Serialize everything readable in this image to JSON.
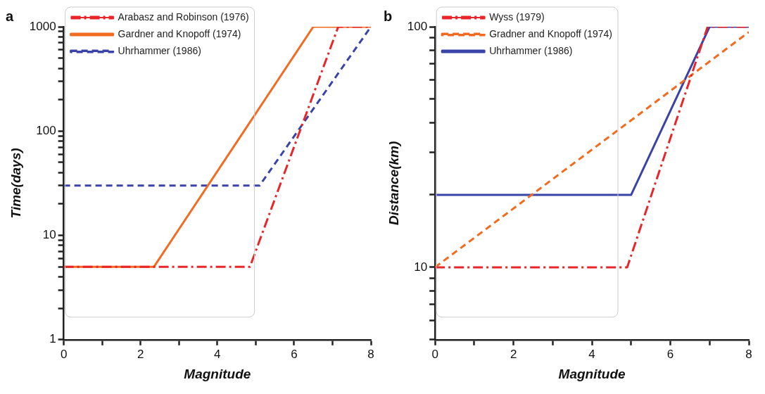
{
  "chart_data": [
    {
      "type": "line",
      "title": "a",
      "xlabel": "Magnitude",
      "ylabel": "Time(days)",
      "log": "y",
      "grid": false,
      "legend": "top left",
      "marker": "none",
      "xlim": [
        0,
        8
      ],
      "xticks": [
        0,
        {
          "value": 1,
          "label": null
        },
        2,
        {
          "value": 3,
          "label": null
        },
        4,
        {
          "value": 5,
          "label": null
        },
        6,
        {
          "value": 7,
          "label": null
        },
        8
      ],
      "ylim": [
        1,
        1000
      ],
      "yticks": [
        1,
        {
          "value": 2,
          "label": null
        },
        {
          "value": 3,
          "label": null
        },
        {
          "value": 4,
          "label": null
        },
        {
          "value": 5,
          "label": null
        },
        {
          "value": 6,
          "label": null
        },
        {
          "value": 7,
          "label": null
        },
        {
          "value": 8,
          "label": null
        },
        {
          "value": 9,
          "label": null
        },
        10,
        {
          "value": 20,
          "label": null
        },
        {
          "value": 30,
          "label": null
        },
        {
          "value": 40,
          "label": null
        },
        {
          "value": 50,
          "label": null
        },
        {
          "value": 60,
          "label": null
        },
        {
          "value": 70,
          "label": null
        },
        {
          "value": 80,
          "label": null
        },
        {
          "value": 90,
          "label": null
        },
        100,
        {
          "value": 200,
          "label": null
        },
        {
          "value": 300,
          "label": null
        },
        {
          "value": 400,
          "label": null
        },
        {
          "value": 500,
          "label": null
        },
        {
          "value": 600,
          "label": null
        },
        {
          "value": 700,
          "label": null
        },
        {
          "value": 800,
          "label": null
        },
        {
          "value": 900,
          "label": null
        },
        1000
      ],
      "series": [
        {
          "name": "Arabasz and Robinson (1976)",
          "color": "#e8262a",
          "line_style": "dashdot",
          "x": [
            0,
            4.85,
            7.15,
            8
          ],
          "values": [
            5,
            5,
            1000,
            1000
          ]
        },
        {
          "name": "Gardner and Knopoff (1974)",
          "color": "#f26b21",
          "line_style": "solid",
          "x": [
            0,
            2.35,
            6.5,
            8
          ],
          "values": [
            5,
            5,
            1000,
            1000
          ]
        },
        {
          "name": "Uhrhammer (1986)",
          "color": "#3a44a8",
          "line_style": "dashed",
          "x": [
            0,
            5.1,
            8
          ],
          "values": [
            30,
            30,
            1000
          ]
        }
      ]
    },
    {
      "type": "line",
      "title": "b",
      "xlabel": "Magnitude",
      "ylabel": "Distance(km)",
      "log": "y",
      "grid": false,
      "legend": "top left",
      "marker": "none",
      "xlim": [
        0,
        8
      ],
      "xticks": [
        0,
        {
          "value": 1,
          "label": null
        },
        2,
        {
          "value": 3,
          "label": null
        },
        4,
        {
          "value": 5,
          "label": null
        },
        6,
        {
          "value": 7,
          "label": null
        },
        8
      ],
      "ylim": [
        5,
        100
      ],
      "yticks": [
        {
          "value": 5,
          "label": null
        },
        {
          "value": 6,
          "label": null
        },
        {
          "value": 7,
          "label": null
        },
        {
          "value": 8,
          "label": null
        },
        {
          "value": 9,
          "label": null
        },
        10,
        {
          "value": 20,
          "label": null
        },
        {
          "value": 30,
          "label": null
        },
        {
          "value": 40,
          "label": null
        },
        {
          "value": 50,
          "label": null
        },
        {
          "value": 60,
          "label": null
        },
        {
          "value": 70,
          "label": null
        },
        {
          "value": 80,
          "label": null
        },
        {
          "value": 90,
          "label": null
        },
        100
      ],
      "series": [
        {
          "name": "Wyss (1979)",
          "color": "#e8262a",
          "line_style": "dashdot",
          "x": [
            0,
            4.9,
            6.95,
            8
          ],
          "values": [
            10,
            10,
            100,
            100
          ]
        },
        {
          "name": "Gradner and Knopoff (1974)",
          "color": "#f26b21",
          "line_style": "dashed",
          "x": [
            0,
            8
          ],
          "values": [
            10,
            95
          ]
        },
        {
          "name": "Uhrhammer (1986)",
          "color": "#3a44a8",
          "line_style": "solid",
          "x": [
            0,
            5,
            7,
            8
          ],
          "values": [
            20,
            20,
            100,
            100
          ]
        }
      ]
    }
  ]
}
